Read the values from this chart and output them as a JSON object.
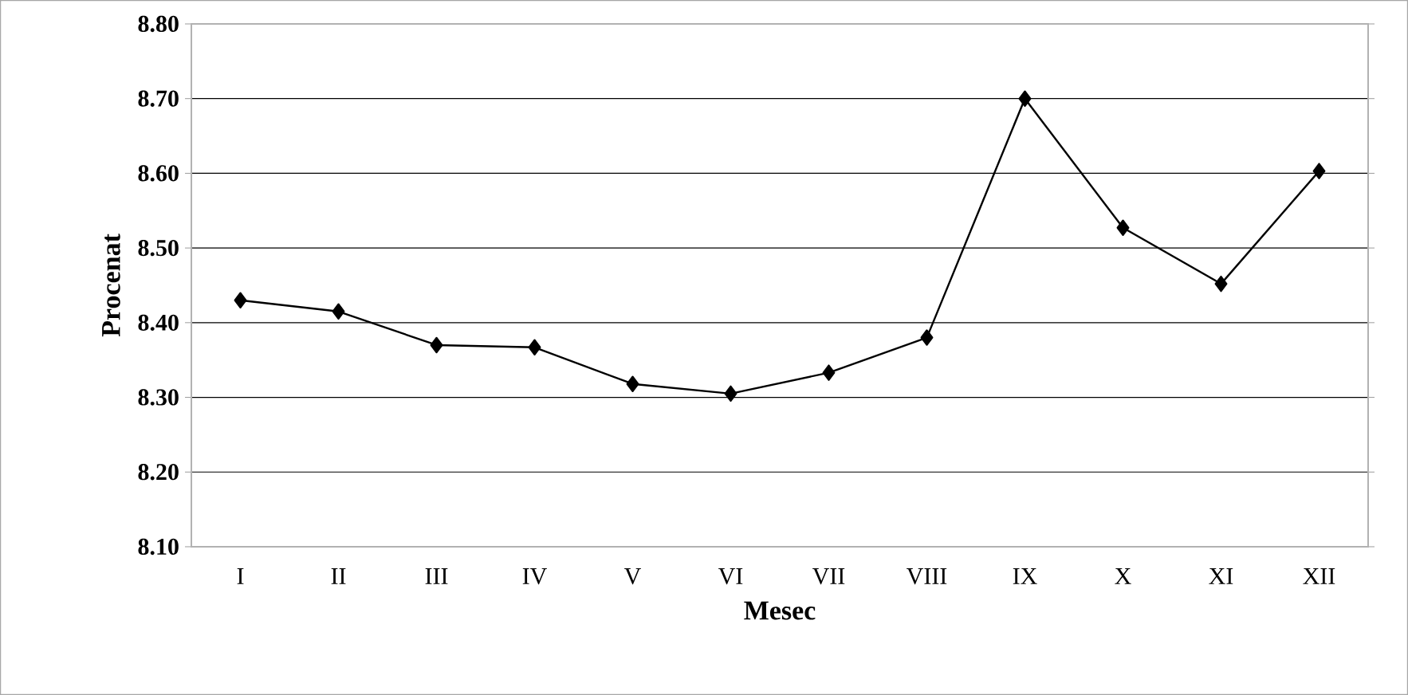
{
  "chart_data": {
    "type": "line",
    "xlabel": "Mesec",
    "ylabel": "Procenat",
    "categories": [
      "I",
      "II",
      "III",
      "IV",
      "V",
      "VI",
      "VII",
      "VIII",
      "IX",
      "X",
      "XI",
      "XII"
    ],
    "series": [
      {
        "color": "#000000",
        "values": [
          8.43,
          8.415,
          8.37,
          8.367,
          8.318,
          8.305,
          8.333,
          8.38,
          8.7,
          8.527,
          8.452,
          8.603
        ]
      }
    ],
    "ylim": [
      8.1,
      8.8
    ],
    "yticks": [
      {
        "value": 8.1,
        "label": "8.10"
      },
      {
        "value": 8.2,
        "label": "8.20"
      },
      {
        "value": 8.3,
        "label": "8.30"
      },
      {
        "value": 8.4,
        "label": "8.40"
      },
      {
        "value": 8.5,
        "label": "8.50"
      },
      {
        "value": 8.6,
        "label": "8.60"
      },
      {
        "value": 8.7,
        "label": "8.70"
      },
      {
        "value": 8.8,
        "label": "8.80"
      }
    ],
    "grid": "y",
    "marker": "diamond",
    "line_style": "solid"
  }
}
